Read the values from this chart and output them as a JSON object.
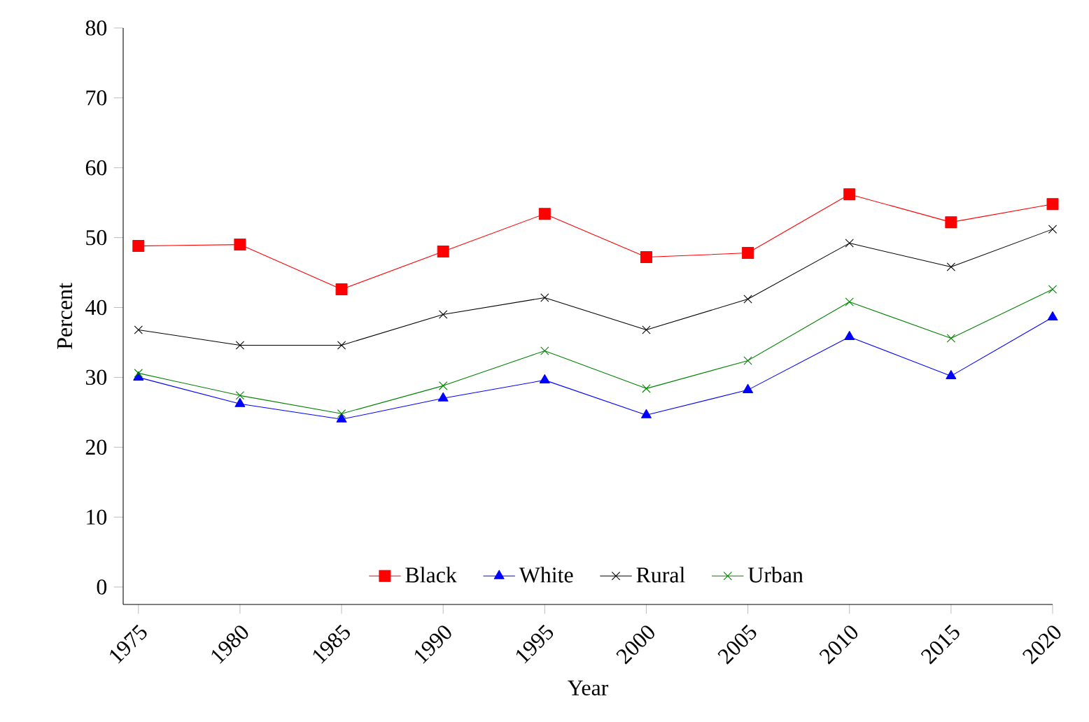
{
  "chart_data": {
    "type": "line",
    "xlabel": "Year",
    "ylabel": "Percent",
    "x": [
      1975,
      1980,
      1985,
      1990,
      1995,
      2000,
      2005,
      2010,
      2015,
      2020
    ],
    "xlim": [
      1974.25,
      2020
    ],
    "xticks": [
      1975,
      1980,
      1985,
      1990,
      1995,
      2000,
      2005,
      2010,
      2015,
      2020
    ],
    "ylim": [
      -2.5,
      80
    ],
    "yticks": [
      0,
      10,
      20,
      30,
      40,
      50,
      60,
      70,
      80
    ],
    "legend": "bottom",
    "series": [
      {
        "name": "Black",
        "color": "#ff0000",
        "marker": "square",
        "values": [
          48.8,
          49.0,
          42.6,
          48.0,
          53.4,
          47.2,
          47.8,
          56.2,
          52.2,
          54.8
        ]
      },
      {
        "name": "White",
        "color": "#0000ff",
        "marker": "triangle",
        "values": [
          30.0,
          26.2,
          24.0,
          27.0,
          29.6,
          24.6,
          28.2,
          35.8,
          30.2,
          38.6
        ]
      },
      {
        "name": "Rural",
        "color": "#000000",
        "marker": "cross",
        "values": [
          36.8,
          34.6,
          34.6,
          39.0,
          41.4,
          36.8,
          41.2,
          49.2,
          45.8,
          51.2
        ]
      },
      {
        "name": "Urban",
        "color": "#008000",
        "marker": "cross",
        "values": [
          30.6,
          27.4,
          24.8,
          28.8,
          33.8,
          28.4,
          32.4,
          40.8,
          35.6,
          42.6
        ]
      }
    ]
  }
}
